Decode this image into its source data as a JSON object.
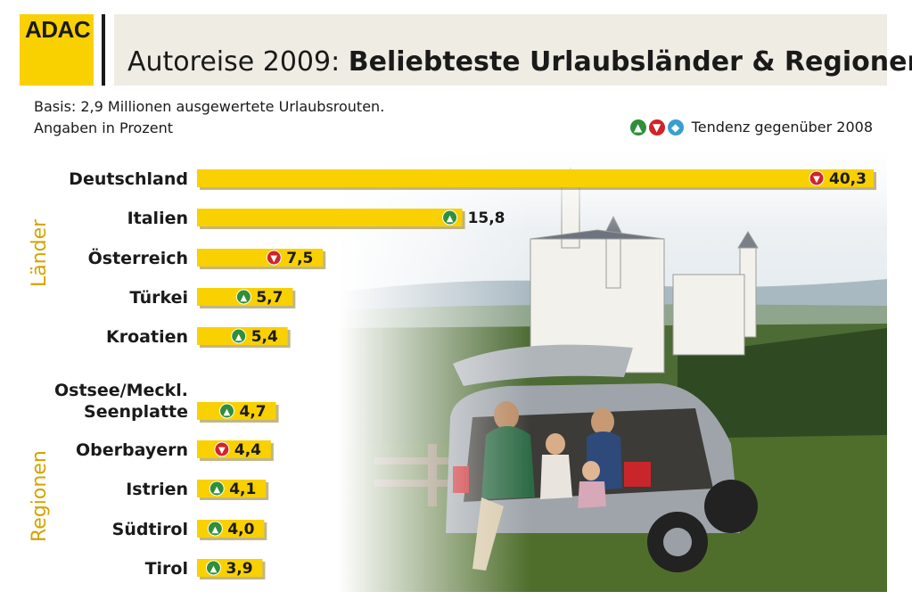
{
  "logo": "ADAC",
  "title_prefix": "Autoreise 2009: ",
  "title_main": "Beliebteste Urlaubsländer & Regionen",
  "note_line1": "Basis: 2,9 Millionen ausgewertete Urlaubsrouten.",
  "note_line2": "Angaben in Prozent",
  "legend_text": "Tendenz gegenüber 2008",
  "section_countries": "Länder",
  "section_regions": "Regionen",
  "colors": {
    "bar": "#f9d000",
    "up": "#2f8f3a",
    "down": "#d2232a",
    "same": "#3a9fd0",
    "section": "#d4a400"
  },
  "chart_data": {
    "type": "bar",
    "orientation": "horizontal",
    "categories": [
      "Deutschland",
      "Italien",
      "Österreich",
      "Türkei",
      "Kroatien",
      "Ostsee/Meckl. Seenplatte",
      "Oberbayern",
      "Istrien",
      "Südtirol",
      "Tirol"
    ],
    "category_lines": [
      [
        "Deutschland"
      ],
      [
        "Italien"
      ],
      [
        "Österreich"
      ],
      [
        "Türkei"
      ],
      [
        "Kroatien"
      ],
      [
        "Ostsee/Meckl.",
        "Seenplatte"
      ],
      [
        "Oberbayern"
      ],
      [
        "Istrien"
      ],
      [
        "Südtirol"
      ],
      [
        "Tirol"
      ]
    ],
    "values": [
      40.3,
      15.8,
      7.5,
      5.7,
      5.4,
      4.7,
      4.4,
      4.1,
      4.0,
      3.9
    ],
    "value_labels": [
      "40,3",
      "15,8",
      "7,5",
      "5,7",
      "5,4",
      "4,7",
      "4,4",
      "4,1",
      "4,0",
      "3,9"
    ],
    "trend": [
      "down",
      "up",
      "down",
      "up",
      "up",
      "up",
      "down",
      "up",
      "up",
      "up"
    ],
    "groups": [
      {
        "name": "Länder",
        "count": 5
      },
      {
        "name": "Regionen",
        "count": 5
      }
    ],
    "xlim": [
      0,
      40.3
    ],
    "grid": false
  }
}
